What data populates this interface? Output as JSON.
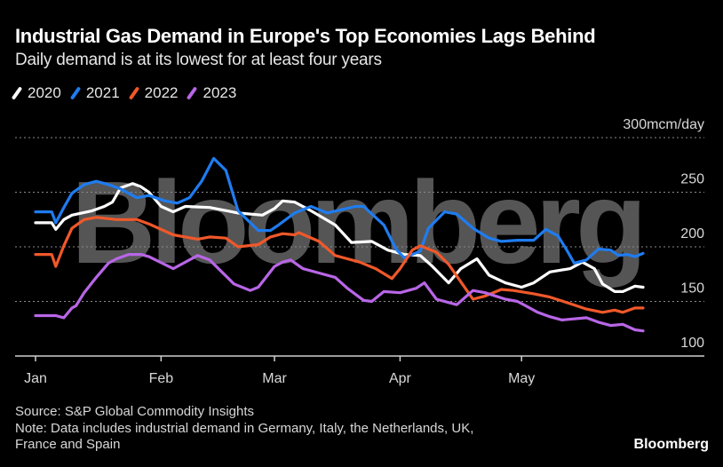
{
  "header": {
    "title": "Industrial Gas Demand in Europe's Top Economies Lags Behind",
    "subtitle": "Daily demand is at its lowest for at least four years"
  },
  "legend": [
    {
      "label": "2020",
      "color": "#ffffff"
    },
    {
      "label": "2021",
      "color": "#1f7cf0"
    },
    {
      "label": "2022",
      "color": "#f0582a"
    },
    {
      "label": "2023",
      "color": "#b866e6"
    }
  ],
  "footer": {
    "source": "Source: S&P Global Commodity Insights",
    "note_line1": "Note: Data includes industrial demand in Germany, Italy, the Netherlands, UK,",
    "note_line2": "France and Spain",
    "brand": "Bloomberg"
  },
  "watermark": "Bloomberg",
  "chart_data": {
    "type": "line",
    "title": "Industrial Gas Demand in Europe's Top Economies Lags Behind",
    "subtitle": "Daily demand is at its lowest for at least four years",
    "xlabel": "",
    "ylabel": "mcm/day",
    "x_unit": "day of year (0 = Jan 1)",
    "xlim": [
      0,
      150
    ],
    "ylim": [
      100,
      300
    ],
    "y_ticks": [
      {
        "value": 300,
        "label": "300mcm/day"
      },
      {
        "value": 250,
        "label": "250"
      },
      {
        "value": 200,
        "label": "200"
      },
      {
        "value": 150,
        "label": "150"
      },
      {
        "value": 100,
        "label": "100"
      }
    ],
    "x_ticks": [
      {
        "day": 0,
        "label": "Jan"
      },
      {
        "day": 31,
        "label": "Feb"
      },
      {
        "day": 59,
        "label": "Mar"
      },
      {
        "day": 90,
        "label": "Apr"
      },
      {
        "day": 120,
        "label": "May"
      }
    ],
    "grid": true,
    "legend_position": "top-left",
    "series": [
      {
        "name": "2020",
        "color": "#ffffff",
        "x": [
          0,
          4,
          5,
          7,
          9,
          14,
          17,
          19,
          21,
          24,
          26,
          28,
          31,
          34,
          37,
          43,
          50,
          56,
          59,
          61,
          64,
          68,
          74,
          78,
          83,
          87,
          91,
          95,
          98,
          102,
          105,
          109,
          112,
          116,
          120,
          123,
          127,
          132,
          135,
          138,
          140,
          143,
          145,
          148,
          150
        ],
        "values": [
          222,
          222,
          216,
          225,
          229,
          233,
          237,
          241,
          254,
          258,
          255,
          250,
          237,
          232,
          237,
          236,
          231,
          229,
          235,
          242,
          241,
          233,
          220,
          204,
          205,
          197,
          193,
          192,
          182,
          167,
          180,
          189,
          174,
          167,
          163,
          167,
          177,
          180,
          186,
          180,
          166,
          159,
          159,
          164,
          163
        ]
      },
      {
        "name": "2021",
        "color": "#1f7cf0",
        "x": [
          0,
          4,
          5,
          7,
          9,
          12,
          15,
          18,
          21,
          25,
          28,
          32,
          35,
          38,
          41,
          44,
          47,
          50,
          55,
          58,
          60,
          64,
          68,
          72,
          79,
          81,
          86,
          89,
          91,
          95,
          97,
          101,
          104,
          108,
          112,
          115,
          119,
          123,
          126,
          129,
          131,
          133,
          136,
          139,
          142,
          144,
          146,
          148,
          150
        ],
        "values": [
          232,
          232,
          222,
          236,
          249,
          257,
          260,
          257,
          253,
          245,
          247,
          242,
          240,
          245,
          260,
          281,
          270,
          233,
          215,
          215,
          220,
          231,
          237,
          231,
          237,
          237,
          220,
          198,
          190,
          196,
          217,
          232,
          230,
          217,
          208,
          205,
          206,
          206,
          216,
          210,
          198,
          185,
          188,
          198,
          197,
          192,
          193,
          191,
          194
        ]
      },
      {
        "name": "2022",
        "color": "#f0582a",
        "x": [
          0,
          4,
          5,
          7,
          9,
          12,
          15,
          20,
          25,
          28,
          34,
          40,
          43,
          47,
          50,
          55,
          58,
          61,
          64,
          65,
          70,
          74,
          80,
          84,
          88,
          90,
          93,
          95,
          99,
          102,
          105,
          108,
          111,
          115,
          118,
          123,
          127,
          132,
          136,
          140,
          143,
          145,
          148,
          150
        ],
        "values": [
          193,
          193,
          182,
          201,
          217,
          225,
          227,
          225,
          225,
          221,
          211,
          207,
          209,
          208,
          200,
          202,
          209,
          212,
          211,
          213,
          205,
          192,
          186,
          180,
          171,
          180,
          197,
          201,
          195,
          184,
          168,
          152,
          155,
          161,
          160,
          157,
          154,
          148,
          143,
          140,
          142,
          140,
          144,
          144
        ]
      },
      {
        "name": "2023",
        "color": "#b866e6",
        "x": [
          0,
          5,
          7,
          9,
          10,
          12,
          15,
          18,
          20,
          23,
          26,
          28,
          34,
          40,
          43,
          49,
          53,
          55,
          59,
          61,
          63,
          66,
          70,
          74,
          77,
          81,
          83,
          86,
          90,
          94,
          96,
          99,
          104,
          108,
          111,
          116,
          119,
          121,
          124,
          127,
          130,
          136,
          139,
          142,
          145,
          148,
          150
        ],
        "values": [
          137,
          137,
          135,
          144,
          146,
          158,
          172,
          185,
          189,
          193,
          193,
          191,
          180,
          192,
          188,
          166,
          160,
          163,
          182,
          186,
          188,
          180,
          176,
          172,
          162,
          151,
          150,
          159,
          158,
          162,
          167,
          152,
          147,
          160,
          158,
          152,
          150,
          146,
          140,
          136,
          133,
          135,
          131,
          128,
          129,
          124,
          123
        ]
      }
    ]
  }
}
